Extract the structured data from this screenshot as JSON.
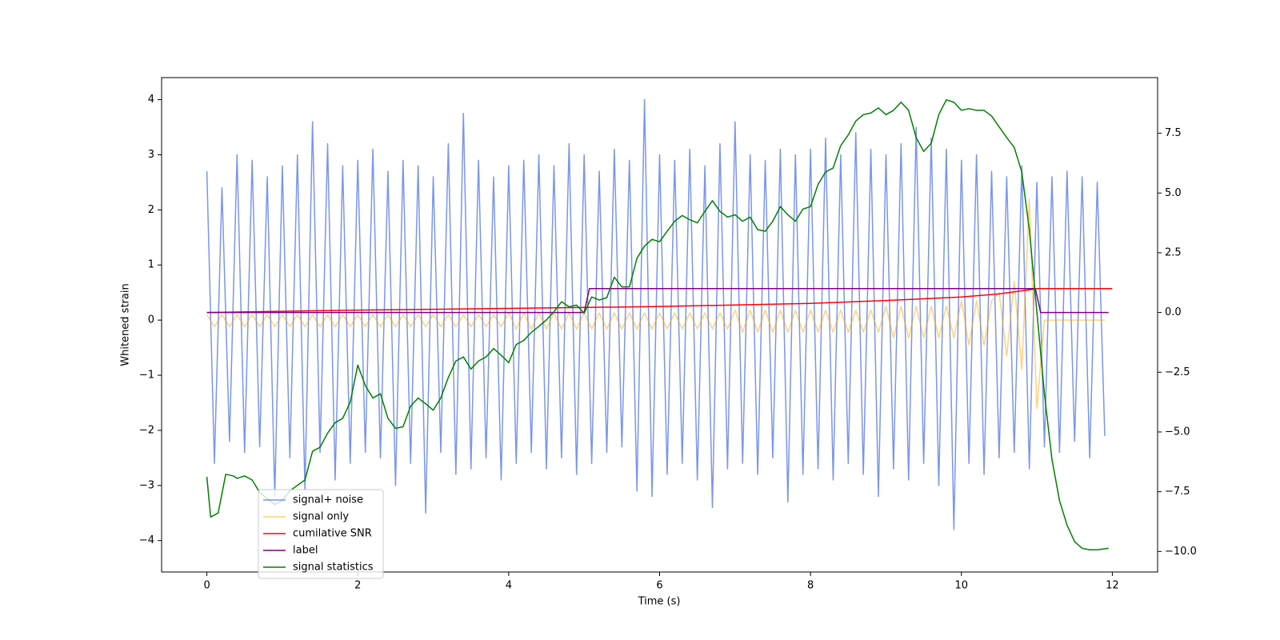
{
  "chart_data": {
    "type": "line",
    "xlabel": "Time (s)",
    "ylabel": "Whitened strain",
    "xlim": [
      -0.6,
      12.6
    ],
    "ylim": [
      -4.57,
      4.4
    ],
    "y2lim": [
      -10.86,
      9.83
    ],
    "xticks": [
      0,
      2,
      4,
      6,
      8,
      10,
      12
    ],
    "yticks": [
      {
        "value": -4,
        "label": "−4"
      },
      {
        "value": -3,
        "label": "−3"
      },
      {
        "value": -2,
        "label": "−2"
      },
      {
        "value": -1,
        "label": "−1"
      },
      0,
      1,
      2,
      3,
      4
    ],
    "y2ticks": [
      {
        "value": -10,
        "label": "−10.0"
      },
      {
        "value": -7.5,
        "label": "−7.5"
      },
      {
        "value": -5,
        "label": "−5.0"
      },
      {
        "value": -2.5,
        "label": "−2.5"
      },
      {
        "value": 0,
        "label": "0.0"
      },
      {
        "value": 2.5,
        "label": "2.5"
      },
      {
        "value": 5,
        "label": "5.0"
      },
      {
        "value": 7.5,
        "label": "7.5"
      }
    ],
    "legend": "lower left",
    "x": [
      0,
      0.1,
      0.2,
      0.3,
      0.4,
      0.5,
      0.6,
      0.7,
      0.8,
      0.9,
      1,
      1.1,
      1.2,
      1.3,
      1.4,
      1.5,
      1.6,
      1.7,
      1.8,
      1.9,
      2,
      2.1,
      2.2,
      2.3,
      2.4,
      2.5,
      2.6,
      2.7,
      2.8,
      2.9,
      3,
      3.1,
      3.2,
      3.3,
      3.4,
      3.5,
      3.6,
      3.7,
      3.8,
      3.9,
      4,
      4.1,
      4.2,
      4.3,
      4.4,
      4.5,
      4.6,
      4.7,
      4.8,
      4.9,
      5,
      5.1,
      5.2,
      5.3,
      5.4,
      5.5,
      5.6,
      5.7,
      5.8,
      5.9,
      6,
      6.1,
      6.2,
      6.3,
      6.4,
      6.5,
      6.6,
      6.7,
      6.8,
      6.9,
      7,
      7.1,
      7.2,
      7.3,
      7.4,
      7.5,
      7.6,
      7.7,
      7.8,
      7.9,
      8,
      8.1,
      8.2,
      8.3,
      8.4,
      8.5,
      8.6,
      8.7,
      8.8,
      8.9,
      9,
      9.1,
      9.2,
      9.3,
      9.4,
      9.5,
      9.6,
      9.7,
      9.8,
      9.9,
      10,
      10.1,
      10.2,
      10.3,
      10.4,
      10.5,
      10.6,
      10.7,
      10.8,
      10.9,
      11,
      11.1,
      11.2,
      11.3,
      11.4,
      11.5,
      11.6,
      11.7,
      11.8,
      11.9
    ],
    "series": [
      {
        "name": "signal+ noise",
        "color": "royalblue",
        "alpha": 0.7,
        "values": [
          2.7,
          -2.6,
          2.4,
          -2.2,
          3.0,
          -2.4,
          2.9,
          -2.3,
          2.6,
          -3.2,
          2.8,
          -2.5,
          3.0,
          -3.1,
          3.6,
          -2.4,
          3.2,
          -2.9,
          2.8,
          -2.6,
          2.9,
          -2.4,
          3.1,
          -2.5,
          2.7,
          -3.0,
          2.9,
          -2.6,
          2.8,
          -3.5,
          2.6,
          -2.4,
          3.2,
          -2.8,
          3.75,
          -2.7,
          2.9,
          -2.5,
          2.6,
          -2.9,
          2.8,
          -2.6,
          2.9,
          -2.4,
          3.0,
          -2.7,
          2.8,
          -2.5,
          3.2,
          -2.8,
          3.0,
          -2.6,
          2.7,
          -2.4,
          3.1,
          -2.3,
          2.9,
          -3.1,
          4.0,
          -3.2,
          3.0,
          -2.8,
          2.9,
          -2.6,
          3.1,
          -2.9,
          2.8,
          -3.4,
          3.2,
          -2.7,
          3.6,
          -2.6,
          3.0,
          -2.8,
          2.9,
          -2.5,
          3.1,
          -3.3,
          3.0,
          -2.8,
          3.1,
          -2.7,
          3.3,
          -2.9,
          3.0,
          -2.6,
          3.4,
          -2.8,
          3.1,
          -3.2,
          3.0,
          -2.7,
          3.2,
          -2.9,
          3.5,
          -2.6,
          3.3,
          -3.0,
          3.1,
          -3.8,
          2.9,
          -2.6,
          3.0,
          -2.8,
          2.7,
          -2.5,
          2.6,
          -2.4,
          2.8,
          -2.7,
          2.5,
          -2.3,
          2.6,
          -2.4,
          2.7,
          -2.2,
          2.6,
          -2.5,
          2.5,
          -2.1
        ]
      },
      {
        "name": "signal only",
        "color": "orange",
        "alpha": 0.5,
        "values": [
          0.1,
          -0.12,
          0.1,
          -0.12,
          0.1,
          -0.12,
          0.1,
          -0.12,
          0.1,
          -0.12,
          0.1,
          -0.12,
          0.1,
          -0.12,
          0.1,
          -0.12,
          0.1,
          -0.12,
          0.1,
          -0.12,
          0.1,
          -0.12,
          0.1,
          -0.12,
          0.1,
          -0.12,
          0.1,
          -0.12,
          0.1,
          -0.12,
          0.1,
          -0.12,
          0.1,
          -0.12,
          0.1,
          -0.12,
          0.1,
          -0.12,
          0.1,
          -0.12,
          0.13,
          -0.16,
          0.13,
          -0.16,
          0.13,
          -0.16,
          0.13,
          -0.16,
          0.13,
          -0.16,
          0.13,
          -0.16,
          0.13,
          -0.16,
          0.13,
          -0.16,
          0.13,
          -0.16,
          0.13,
          -0.16,
          0.13,
          -0.16,
          0.13,
          -0.16,
          0.13,
          -0.16,
          0.13,
          -0.16,
          0.13,
          -0.16,
          0.18,
          -0.22,
          0.18,
          -0.22,
          0.18,
          -0.22,
          0.18,
          -0.22,
          0.18,
          -0.22,
          0.18,
          -0.22,
          0.18,
          -0.22,
          0.18,
          -0.22,
          0.18,
          -0.22,
          0.18,
          -0.22,
          0.25,
          -0.32,
          0.25,
          -0.32,
          0.25,
          -0.32,
          0.25,
          -0.32,
          0.25,
          -0.32,
          0.35,
          -0.45,
          0.35,
          -0.45,
          0.35,
          0.5,
          -0.65,
          0.7,
          -0.9,
          2.2,
          -1.6,
          0,
          0,
          0,
          0,
          0,
          0,
          0,
          0,
          0
        ]
      },
      {
        "name": "cumilative SNR",
        "color": "red",
        "axis": "y2",
        "x": [
          0,
          2,
          4,
          6,
          8,
          9,
          10,
          10.5,
          10.9,
          11,
          12
        ],
        "values": [
          0,
          0.1,
          0.17,
          0.25,
          0.38,
          0.5,
          0.65,
          0.78,
          0.95,
          1,
          1
        ]
      },
      {
        "name": "label",
        "color": "purple",
        "axis": "y2",
        "x": [
          0,
          5,
          5.07,
          10.98,
          11.05,
          11.95
        ],
        "values": [
          0,
          0,
          1,
          1,
          0,
          0
        ]
      },
      {
        "name": "signal statistics",
        "color": "green",
        "axis": "y2",
        "x": [
          0,
          0.05,
          0.15,
          0.25,
          0.35,
          0.4,
          0.5,
          0.6,
          0.7,
          0.8,
          0.9,
          1,
          1.1,
          1.3,
          1.4,
          1.5,
          1.6,
          1.7,
          1.8,
          1.9,
          2,
          2.1,
          2.2,
          2.3,
          2.4,
          2.5,
          2.6,
          2.7,
          2.8,
          2.9,
          3,
          3.1,
          3.2,
          3.3,
          3.4,
          3.5,
          3.6,
          3.7,
          3.8,
          3.9,
          4,
          4.1,
          4.2,
          4.3,
          4.4,
          4.5,
          4.6,
          4.7,
          4.8,
          4.9,
          5,
          5.1,
          5.2,
          5.3,
          5.4,
          5.5,
          5.6,
          5.7,
          5.8,
          5.9,
          6,
          6.1,
          6.2,
          6.3,
          6.4,
          6.5,
          6.6,
          6.7,
          6.8,
          6.9,
          7,
          7.1,
          7.2,
          7.3,
          7.4,
          7.5,
          7.6,
          7.7,
          7.8,
          7.9,
          8,
          8.1,
          8.2,
          8.3,
          8.4,
          8.5,
          8.6,
          8.7,
          8.8,
          8.9,
          9,
          9.1,
          9.2,
          9.3,
          9.4,
          9.5,
          9.6,
          9.7,
          9.8,
          9.9,
          10,
          10.1,
          10.2,
          10.3,
          10.4,
          10.5,
          10.6,
          10.7,
          10.8,
          10.9,
          11,
          11.1,
          11.2,
          11.3,
          11.4,
          11.5,
          11.6,
          11.7,
          11.8,
          11.95
        ],
        "values": [
          -6.88,
          -8.56,
          -8.39,
          -6.77,
          -6.84,
          -6.94,
          -6.84,
          -7.01,
          -7.53,
          -7.8,
          -8.04,
          -7.87,
          -7.46,
          -7.01,
          -5.81,
          -5.64,
          -5.05,
          -4.61,
          -4.43,
          -3.75,
          -2.2,
          -3.06,
          -3.58,
          -3.4,
          -4.43,
          -4.85,
          -4.78,
          -3.92,
          -3.58,
          -3.82,
          -4.09,
          -3.58,
          -2.72,
          -2.03,
          -1.86,
          -2.37,
          -2.03,
          -1.86,
          -1.51,
          -1.79,
          -2.1,
          -1.34,
          -1.17,
          -0.83,
          -0.58,
          -0.31,
          0.03,
          0.45,
          0.24,
          0.31,
          -0.03,
          0.65,
          0.52,
          0.62,
          1.48,
          1.07,
          1.07,
          2.27,
          2.78,
          3.06,
          2.96,
          3.4,
          3.82,
          4.06,
          3.88,
          3.75,
          4.23,
          4.68,
          4.23,
          3.99,
          4.09,
          3.82,
          3.99,
          3.47,
          3.4,
          3.82,
          4.43,
          4.09,
          3.82,
          4.33,
          4.43,
          5.36,
          5.88,
          6.05,
          6.98,
          7.43,
          8.01,
          8.28,
          8.35,
          8.56,
          8.28,
          8.46,
          8.8,
          8.46,
          7.32,
          6.74,
          7.08,
          8.28,
          8.9,
          8.8,
          8.46,
          8.53,
          8.46,
          8.46,
          8.22,
          7.77,
          7.32,
          6.91,
          5.88,
          3.47,
          0.03,
          -3.4,
          -6.15,
          -7.87,
          -8.9,
          -9.59,
          -9.87,
          -9.93,
          -9.93,
          -9.87
        ]
      }
    ]
  }
}
